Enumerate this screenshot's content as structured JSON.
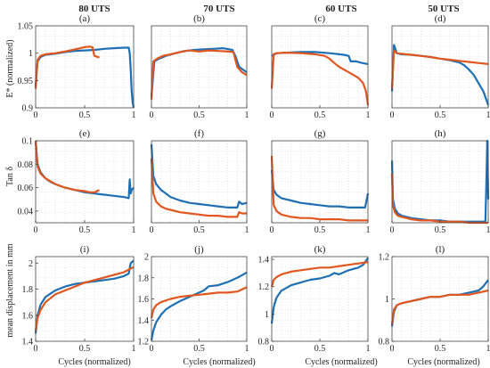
{
  "figure": {
    "column_titles": [
      "80 UTS",
      "70 UTS",
      "60 UTS",
      "50 UTS"
    ],
    "row_ylabels": [
      "E* (normalized)",
      "Tan δ",
      "mean displacement in mm"
    ],
    "xlabel": "Cycles (normalized)",
    "colors": {
      "series_a": "#1f6fb4",
      "series_b": "#e2561f",
      "grid": "#d4d4d4",
      "axes": "#444444"
    }
  },
  "chart_data": [
    {
      "type": "line",
      "panel": "(a)",
      "title": "80 UTS",
      "xlim": [
        0,
        1
      ],
      "ylim": [
        0.9,
        1.05
      ],
      "xticks": [
        "0",
        "0.5",
        "1"
      ],
      "yticks": [
        "0.9",
        "0.95",
        "1",
        "1.05"
      ],
      "grid": true,
      "series": [
        {
          "color": "#1f6fb4",
          "x": [
            0,
            0.02,
            0.05,
            0.1,
            0.2,
            0.3,
            0.4,
            0.5,
            0.6,
            0.7,
            0.8,
            0.9,
            0.95,
            0.96,
            0.97,
            0.98,
            0.99,
            1.0
          ],
          "y": [
            0.94,
            0.985,
            0.993,
            0.997,
            0.999,
            1.002,
            1.004,
            1.005,
            1.006,
            1.008,
            1.009,
            1.01,
            1.01,
            1.0,
            0.97,
            0.93,
            0.91,
            0.9
          ]
        },
        {
          "color": "#e2561f",
          "x": [
            0,
            0.02,
            0.05,
            0.1,
            0.2,
            0.3,
            0.4,
            0.5,
            0.55,
            0.58,
            0.6,
            0.65
          ],
          "y": [
            0.935,
            0.988,
            0.995,
            0.998,
            1.0,
            1.003,
            1.007,
            1.011,
            1.012,
            1.011,
            0.995,
            0.992
          ]
        }
      ]
    },
    {
      "type": "line",
      "panel": "(b)",
      "title": "70 UTS",
      "xlim": [
        0,
        1
      ],
      "ylim": [
        0.9,
        1.05
      ],
      "xticks": [
        "0",
        "0.5",
        "1"
      ],
      "yticks": [],
      "grid": true,
      "series": [
        {
          "color": "#1f6fb4",
          "x": [
            0,
            0.03,
            0.08,
            0.15,
            0.25,
            0.35,
            0.45,
            0.55,
            0.65,
            0.75,
            0.85,
            0.88,
            0.92,
            0.96,
            1.0
          ],
          "y": [
            0.92,
            0.985,
            0.99,
            0.995,
            1.0,
            1.004,
            1.006,
            1.007,
            1.008,
            1.009,
            1.006,
            0.995,
            0.975,
            0.97,
            0.965
          ]
        },
        {
          "color": "#e2561f",
          "x": [
            0,
            0.02,
            0.06,
            0.12,
            0.2,
            0.3,
            0.4,
            0.5,
            0.6,
            0.7,
            0.8,
            0.86,
            0.9,
            0.95,
            1.0
          ],
          "y": [
            0.915,
            0.985,
            0.99,
            0.995,
            0.998,
            1.002,
            1.005,
            1.003,
            1.005,
            1.004,
            1.003,
            1.002,
            0.975,
            0.965,
            0.96
          ]
        }
      ]
    },
    {
      "type": "line",
      "panel": "(c)",
      "title": "60 UTS",
      "xlim": [
        0,
        1
      ],
      "ylim": [
        0.9,
        1.05
      ],
      "xticks": [
        "0",
        "0.5",
        "1"
      ],
      "yticks": [],
      "grid": true,
      "series": [
        {
          "color": "#1f6fb4",
          "x": [
            0,
            0.05,
            0.15,
            0.3,
            0.45,
            0.6,
            0.7,
            0.75,
            0.8,
            0.82,
            0.88,
            0.94,
            1.0
          ],
          "y": [
            0.995,
            1.0,
            1.001,
            1.002,
            1.002,
            1.0,
            0.998,
            0.997,
            0.995,
            0.985,
            0.985,
            0.982,
            0.98
          ]
        },
        {
          "color": "#e2561f",
          "x": [
            0,
            0.02,
            0.05,
            0.15,
            0.3,
            0.45,
            0.55,
            0.6,
            0.65,
            0.7,
            0.8,
            0.9,
            0.95,
            0.98,
            1.0
          ],
          "y": [
            0.935,
            0.998,
            1.0,
            1.001,
            1.0,
            0.998,
            0.995,
            0.99,
            0.982,
            0.975,
            0.965,
            0.955,
            0.945,
            0.93,
            0.905
          ]
        }
      ]
    },
    {
      "type": "line",
      "panel": "(d)",
      "title": "50 UTS",
      "xlim": [
        0,
        1
      ],
      "ylim": [
        0.9,
        1.05
      ],
      "xticks": [
        "0",
        "0.5",
        "1"
      ],
      "yticks": [],
      "grid": true,
      "series": [
        {
          "color": "#1f6fb4",
          "x": [
            0,
            0.02,
            0.05,
            0.1,
            0.2,
            0.3,
            0.4,
            0.5,
            0.6,
            0.7,
            0.75,
            0.8,
            0.85,
            0.9,
            0.95,
            1.0
          ],
          "y": [
            0.93,
            1.015,
            1.0,
            0.998,
            0.997,
            0.995,
            0.993,
            0.99,
            0.987,
            0.983,
            0.978,
            0.97,
            0.96,
            0.945,
            0.93,
            0.905
          ]
        },
        {
          "color": "#e2561f",
          "x": [
            0,
            0.02,
            0.05,
            0.1,
            0.2,
            0.3,
            0.4,
            0.5,
            0.6,
            0.7,
            0.8,
            0.9,
            1.0
          ],
          "y": [
            0.935,
            1.005,
            1.0,
            0.999,
            0.997,
            0.995,
            0.993,
            0.99,
            0.988,
            0.986,
            0.984,
            0.982,
            0.98
          ]
        }
      ]
    },
    {
      "type": "line",
      "panel": "(e)",
      "xlim": [
        0,
        1
      ],
      "ylim": [
        0.03,
        0.1
      ],
      "xticks": [
        "0",
        "0.5",
        "1"
      ],
      "yticks": [
        "0.04",
        "0.06",
        "0.08",
        "0.1"
      ],
      "grid": true,
      "series": [
        {
          "color": "#1f6fb4",
          "x": [
            0,
            0.02,
            0.05,
            0.1,
            0.15,
            0.2,
            0.3,
            0.4,
            0.5,
            0.6,
            0.7,
            0.8,
            0.9,
            0.95,
            0.96,
            0.97,
            0.98,
            1.0
          ],
          "y": [
            0.1,
            0.08,
            0.073,
            0.068,
            0.065,
            0.063,
            0.06,
            0.058,
            0.056,
            0.055,
            0.054,
            0.053,
            0.052,
            0.051,
            0.067,
            0.055,
            0.058,
            0.06
          ]
        },
        {
          "color": "#e2561f",
          "x": [
            0,
            0.02,
            0.05,
            0.1,
            0.2,
            0.3,
            0.4,
            0.5,
            0.55,
            0.6,
            0.65
          ],
          "y": [
            0.1,
            0.078,
            0.072,
            0.068,
            0.063,
            0.06,
            0.058,
            0.057,
            0.056,
            0.056,
            0.058
          ]
        }
      ]
    },
    {
      "type": "line",
      "panel": "(f)",
      "xlim": [
        0,
        1
      ],
      "ylim": [
        0.03,
        0.1
      ],
      "xticks": [
        "0",
        "0.5",
        "1"
      ],
      "yticks": [],
      "grid": true,
      "series": [
        {
          "color": "#1f6fb4",
          "x": [
            0,
            0.02,
            0.05,
            0.1,
            0.15,
            0.2,
            0.3,
            0.4,
            0.5,
            0.6,
            0.7,
            0.8,
            0.9,
            0.92,
            0.95,
            1.0
          ],
          "y": [
            0.097,
            0.07,
            0.063,
            0.058,
            0.055,
            0.052,
            0.049,
            0.047,
            0.046,
            0.045,
            0.044,
            0.043,
            0.043,
            0.048,
            0.046,
            0.047
          ]
        },
        {
          "color": "#e2561f",
          "x": [
            0,
            0.02,
            0.05,
            0.1,
            0.15,
            0.2,
            0.3,
            0.4,
            0.5,
            0.6,
            0.7,
            0.8,
            0.9,
            0.92,
            0.95,
            1.0
          ],
          "y": [
            0.085,
            0.055,
            0.048,
            0.044,
            0.042,
            0.041,
            0.039,
            0.038,
            0.037,
            0.036,
            0.036,
            0.035,
            0.035,
            0.039,
            0.038,
            0.038
          ]
        }
      ]
    },
    {
      "type": "line",
      "panel": "(g)",
      "xlim": [
        0,
        1
      ],
      "ylim": [
        0.03,
        0.1
      ],
      "xticks": [
        "0",
        "0.5",
        "1"
      ],
      "yticks": [],
      "grid": true,
      "series": [
        {
          "color": "#1f6fb4",
          "x": [
            0,
            0.02,
            0.05,
            0.1,
            0.2,
            0.3,
            0.4,
            0.5,
            0.6,
            0.7,
            0.8,
            0.9,
            0.97,
            1.0
          ],
          "y": [
            0.075,
            0.058,
            0.054,
            0.051,
            0.049,
            0.047,
            0.046,
            0.045,
            0.044,
            0.044,
            0.043,
            0.043,
            0.043,
            0.055
          ]
        },
        {
          "color": "#e2561f",
          "x": [
            0,
            0.02,
            0.05,
            0.1,
            0.2,
            0.3,
            0.4,
            0.5,
            0.6,
            0.7,
            0.8,
            0.9,
            1.0
          ],
          "y": [
            0.087,
            0.045,
            0.04,
            0.037,
            0.035,
            0.034,
            0.034,
            0.033,
            0.033,
            0.033,
            0.032,
            0.032,
            0.032
          ]
        }
      ]
    },
    {
      "type": "line",
      "panel": "(h)",
      "xlim": [
        0,
        1
      ],
      "ylim": [
        0.03,
        0.1
      ],
      "xticks": [
        "0",
        "0.5",
        "1"
      ],
      "yticks": [],
      "grid": true,
      "series": [
        {
          "color": "#1f6fb4",
          "x": [
            0,
            0.01,
            0.03,
            0.06,
            0.1,
            0.2,
            0.3,
            0.4,
            0.5,
            0.6,
            0.7,
            0.8,
            0.9,
            0.97,
            0.98,
            0.99,
            1.0
          ],
          "y": [
            0.083,
            0.05,
            0.042,
            0.038,
            0.036,
            0.034,
            0.033,
            0.032,
            0.032,
            0.031,
            0.031,
            0.031,
            0.031,
            0.031,
            0.06,
            0.1,
            0.05
          ]
        },
        {
          "color": "#e2561f",
          "x": [
            0,
            0.01,
            0.03,
            0.06,
            0.1,
            0.2,
            0.3,
            0.4,
            0.5,
            0.6,
            0.7,
            0.8,
            0.9,
            1.0
          ],
          "y": [
            0.072,
            0.045,
            0.039,
            0.036,
            0.035,
            0.033,
            0.032,
            0.032,
            0.031,
            0.031,
            0.031,
            0.03,
            0.03,
            0.03
          ]
        }
      ]
    },
    {
      "type": "line",
      "panel": "(i)",
      "xlim": [
        0,
        1
      ],
      "ylim": [
        1.4,
        2.05
      ],
      "xticks": [
        "0",
        "0.5",
        "1"
      ],
      "yticks": [
        "1.4",
        "1.6",
        "1.8",
        "2"
      ],
      "grid": true,
      "series": [
        {
          "color": "#1f6fb4",
          "x": [
            0,
            0.02,
            0.05,
            0.1,
            0.2,
            0.3,
            0.4,
            0.5,
            0.6,
            0.7,
            0.8,
            0.9,
            0.95,
            0.97,
            1.0
          ],
          "y": [
            1.46,
            1.6,
            1.68,
            1.74,
            1.79,
            1.82,
            1.84,
            1.85,
            1.86,
            1.87,
            1.88,
            1.9,
            1.92,
            2.0,
            2.02
          ]
        },
        {
          "color": "#e2561f",
          "x": [
            0,
            0.02,
            0.05,
            0.1,
            0.2,
            0.3,
            0.4,
            0.5,
            0.6,
            0.7,
            0.8,
            0.9,
            0.95,
            1.0
          ],
          "y": [
            1.48,
            1.58,
            1.64,
            1.7,
            1.76,
            1.79,
            1.82,
            1.85,
            1.87,
            1.89,
            1.91,
            1.93,
            1.95,
            1.97
          ]
        }
      ]
    },
    {
      "type": "line",
      "panel": "(j)",
      "xlim": [
        0,
        1
      ],
      "ylim": [
        1.2,
        2.0
      ],
      "xticks": [
        "0",
        "0.5",
        "1"
      ],
      "yticks": [
        "1.2",
        "1.4",
        "1.6",
        "1.8",
        "2"
      ],
      "grid": true,
      "series": [
        {
          "color": "#1f6fb4",
          "x": [
            0,
            0.02,
            0.05,
            0.1,
            0.15,
            0.2,
            0.3,
            0.4,
            0.5,
            0.55,
            0.6,
            0.7,
            0.8,
            0.9,
            1.0
          ],
          "y": [
            1.21,
            1.3,
            1.38,
            1.45,
            1.5,
            1.53,
            1.58,
            1.62,
            1.66,
            1.68,
            1.72,
            1.73,
            1.76,
            1.8,
            1.85
          ]
        },
        {
          "color": "#e2561f",
          "x": [
            0,
            0.02,
            0.05,
            0.1,
            0.2,
            0.3,
            0.4,
            0.5,
            0.6,
            0.7,
            0.8,
            0.9,
            1.0
          ],
          "y": [
            1.42,
            1.5,
            1.54,
            1.57,
            1.6,
            1.62,
            1.63,
            1.64,
            1.65,
            1.66,
            1.66,
            1.67,
            1.71
          ]
        }
      ]
    },
    {
      "type": "line",
      "panel": "(k)",
      "xlim": [
        0,
        1
      ],
      "ylim": [
        0.8,
        1.42
      ],
      "xticks": [
        "0",
        "0.5",
        "1"
      ],
      "yticks": [
        "0.8",
        "1",
        "1.2",
        "1.4"
      ],
      "grid": true,
      "series": [
        {
          "color": "#1f6fb4",
          "x": [
            0,
            0.02,
            0.05,
            0.1,
            0.2,
            0.3,
            0.4,
            0.5,
            0.6,
            0.65,
            0.7,
            0.8,
            0.9,
            0.95,
            1.0
          ],
          "y": [
            0.93,
            1.05,
            1.12,
            1.17,
            1.21,
            1.23,
            1.25,
            1.26,
            1.28,
            1.3,
            1.29,
            1.32,
            1.34,
            1.36,
            1.41
          ]
        },
        {
          "color": "#e2561f",
          "x": [
            0,
            0.02,
            0.05,
            0.1,
            0.2,
            0.3,
            0.4,
            0.5,
            0.6,
            0.7,
            0.8,
            0.9,
            1.0
          ],
          "y": [
            1.2,
            1.25,
            1.27,
            1.29,
            1.31,
            1.32,
            1.33,
            1.34,
            1.34,
            1.35,
            1.36,
            1.37,
            1.38
          ]
        }
      ]
    },
    {
      "type": "line",
      "panel": "(l)",
      "xlim": [
        0,
        1
      ],
      "ylim": [
        0.8,
        1.2
      ],
      "xticks": [
        "0",
        "0.5",
        "1"
      ],
      "yticks": [
        "0.8",
        "1",
        "1.2"
      ],
      "grid": true,
      "series": [
        {
          "color": "#1f6fb4",
          "x": [
            0,
            0.02,
            0.05,
            0.1,
            0.2,
            0.3,
            0.4,
            0.5,
            0.6,
            0.7,
            0.8,
            0.9,
            0.95,
            1.0
          ],
          "y": [
            0.87,
            0.94,
            0.97,
            0.98,
            0.99,
            1.0,
            1.01,
            1.01,
            1.02,
            1.02,
            1.03,
            1.04,
            1.06,
            1.09
          ]
        },
        {
          "color": "#e2561f",
          "x": [
            0,
            0.02,
            0.05,
            0.1,
            0.2,
            0.3,
            0.4,
            0.5,
            0.6,
            0.7,
            0.8,
            0.9,
            1.0
          ],
          "y": [
            0.88,
            0.95,
            0.97,
            0.98,
            0.99,
            1.0,
            1.01,
            1.01,
            1.02,
            1.02,
            1.02,
            1.03,
            1.04
          ]
        }
      ]
    }
  ]
}
